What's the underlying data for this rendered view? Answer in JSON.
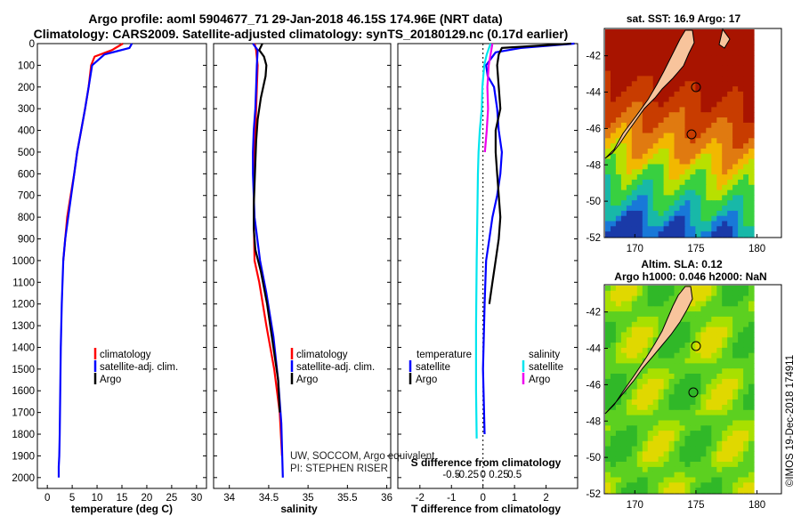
{
  "header": {
    "line1": "Argo profile: aoml 5904677_71 29-Jan-2018 46.15S 174.96E (NRT data)",
    "line2": "Climatology: CARS2009. Satellite-adjusted climatology: synTS_20180129.nc (0.17d earlier)"
  },
  "colors": {
    "climatology": "#ff0000",
    "satellite": "#0000ff",
    "argo": "#000000",
    "sat_s": "#00e5ee",
    "argo_s": "#ee00ee"
  },
  "chart_data": [
    {
      "type": "line",
      "name": "temperature-panel",
      "xlabel": "temperature (deg C)",
      "ylabel": "",
      "xlim": [
        -2,
        32
      ],
      "ylim": [
        2050,
        0
      ],
      "xticks": [
        0,
        5,
        10,
        15,
        20,
        25,
        30
      ],
      "yticks": [
        0,
        100,
        200,
        300,
        400,
        500,
        600,
        700,
        800,
        900,
        1000,
        1100,
        1200,
        1300,
        1400,
        1500,
        1600,
        1700,
        1800,
        1900,
        2000
      ],
      "legend": [
        "climatology",
        "satellite-adj. clim.",
        "Argo"
      ],
      "series": [
        {
          "name": "climatology",
          "color": "#ff0000",
          "x": [
            15.2,
            13.0,
            9.5,
            8.8,
            8.3,
            7.6,
            6.8,
            6.0,
            5.4,
            4.7,
            4.0,
            3.6,
            3.2
          ],
          "y": [
            0,
            30,
            60,
            100,
            200,
            300,
            400,
            500,
            600,
            700,
            800,
            900,
            1000
          ]
        },
        {
          "name": "satellite-adj. clim.",
          "color": "#0000ff",
          "x": [
            17.0,
            16.5,
            11.5,
            9.0,
            8.3,
            7.6,
            6.8,
            6.0,
            5.4,
            4.8,
            4.2,
            3.6,
            3.2,
            2.9,
            2.7,
            2.6,
            2.5,
            2.4,
            2.3,
            2.3
          ],
          "y": [
            0,
            20,
            50,
            100,
            200,
            300,
            400,
            500,
            600,
            700,
            800,
            900,
            1000,
            1200,
            1400,
            1600,
            1800,
            1900,
            1950,
            2000
          ]
        },
        {
          "name": "Argo",
          "color": "#000000",
          "x": [],
          "y": []
        }
      ]
    },
    {
      "type": "line",
      "name": "salinity-panel",
      "xlabel": "salinity",
      "xlim": [
        33.8,
        36.05
      ],
      "ylim": [
        2050,
        0
      ],
      "xticks": [
        34,
        34.5,
        35,
        35.5,
        36
      ],
      "xticklabels": [
        "34",
        "34.5",
        "35",
        "35.5",
        "36"
      ],
      "legend": [
        "climatology",
        "satellite-adj. clim.",
        "Argo"
      ],
      "series": [
        {
          "name": "climatology",
          "color": "#ff0000",
          "x": [
            34.32,
            34.34,
            34.36,
            34.35,
            34.34,
            34.33,
            34.32,
            34.31,
            34.31,
            34.32,
            34.38,
            34.47,
            34.57,
            34.64,
            34.67
          ],
          "y": [
            0,
            30,
            100,
            200,
            300,
            400,
            500,
            600,
            800,
            1000,
            1100,
            1300,
            1500,
            1700,
            1900
          ]
        },
        {
          "name": "satellite-adj. clim.",
          "color": "#0000ff",
          "x": [
            34.3,
            34.36,
            34.35,
            34.34,
            34.33,
            34.31,
            34.3,
            34.3,
            34.32,
            34.39,
            34.47,
            34.56,
            34.62,
            34.66,
            34.68
          ],
          "y": [
            0,
            30,
            100,
            200,
            300,
            400,
            500,
            600,
            800,
            1000,
            1150,
            1350,
            1550,
            1750,
            2000
          ]
        },
        {
          "name": "Argo",
          "color": "#000000",
          "x": [
            34.42,
            34.38,
            34.44,
            34.47,
            34.46,
            34.4,
            34.36,
            34.34,
            34.33,
            34.32,
            34.31,
            34.31,
            34.33,
            34.4,
            34.48,
            34.56,
            34.62,
            34.64
          ],
          "y": [
            0,
            30,
            60,
            100,
            150,
            250,
            350,
            450,
            550,
            650,
            750,
            850,
            950,
            1050,
            1200,
            1400,
            1550,
            1700
          ]
        }
      ]
    },
    {
      "type": "line",
      "name": "difference-panel",
      "xlabel": "T difference from climatology",
      "xlabel2": "S difference from climatology",
      "xlim": [
        -2.7,
        3.0
      ],
      "ylim": [
        2050,
        0
      ],
      "xticks": [
        -2,
        -1,
        0,
        1,
        2
      ],
      "xticks2": [
        -0.5,
        -0.25,
        0,
        0.25,
        0.5
      ],
      "xticklabels2": [
        "-0.5",
        "-0.25",
        "0",
        "0.25",
        "0.5"
      ],
      "legend_left_title": "temperature",
      "legend_right_title": "salinity",
      "legend": [
        "satellite",
        "Argo",
        "satellite",
        "Argo"
      ],
      "series": [
        {
          "name": "T satellite",
          "color": "#0000ff",
          "x": [
            2.9,
            1.2,
            0.4,
            0.1,
            0.15,
            0.35,
            0.45,
            0.5,
            0.6,
            0.55,
            0.45,
            0.3,
            0.2,
            0.1,
            0.05,
            0.0,
            0.05
          ],
          "y": [
            0,
            20,
            40,
            100,
            150,
            200,
            300,
            400,
            500,
            600,
            700,
            800,
            900,
            1000,
            1200,
            1500,
            1800
          ]
        },
        {
          "name": "T Argo",
          "color": "#000000",
          "x": [
            2.8,
            0.6,
            0.5,
            0.45,
            0.5,
            0.55,
            0.4,
            0.4,
            0.45,
            0.5,
            0.55,
            0.5,
            0.4,
            0.3,
            0.2
          ],
          "y": [
            0,
            20,
            50,
            100,
            200,
            300,
            400,
            500,
            600,
            700,
            800,
            900,
            1000,
            1100,
            1200
          ]
        },
        {
          "name": "S satellite",
          "color": "#00e5ee",
          "x": [
            0.12,
            0.06,
            0.02,
            -0.01,
            -0.02,
            -0.05,
            -0.07,
            -0.08,
            -0.09,
            -0.1,
            -0.11,
            -0.11,
            -0.1
          ],
          "y": [
            0,
            50,
            100,
            200,
            300,
            400,
            500,
            600,
            800,
            1000,
            1300,
            1600,
            1820
          ]
        },
        {
          "name": "S Argo",
          "color": "#ee00ee",
          "x": [
            0.15,
            0.09,
            0.07,
            0.08,
            0.06,
            0.03
          ],
          "y": [
            0,
            100,
            200,
            300,
            400,
            500
          ]
        }
      ]
    },
    {
      "type": "heatmap",
      "name": "sst-map",
      "title": "sat. SST: 16.9 Argo: 17",
      "xlim": [
        167.5,
        182
      ],
      "ylim": [
        -52,
        -40.5
      ],
      "xticks": [
        170,
        175,
        180
      ],
      "yticks": [
        -42,
        -44,
        -46,
        -48,
        -50,
        -52
      ]
    },
    {
      "type": "heatmap",
      "name": "sla-map",
      "title": "Altim. SLA: 0.12",
      "subtitle": "Argo h1000: 0.046 h2000: NaN",
      "xlim": [
        167.5,
        182
      ],
      "ylim": [
        -52,
        -40.5
      ],
      "xticks": [
        170,
        175,
        180
      ],
      "yticks": [
        -42,
        -44,
        -46,
        -48,
        -50,
        -52
      ]
    }
  ],
  "credit": {
    "line1": "UW, SOCCOM, Argo equivalent",
    "line2": "PI: STEPHEN RISER"
  },
  "watermark": "©IMOS 19-Dec-2018 174911"
}
